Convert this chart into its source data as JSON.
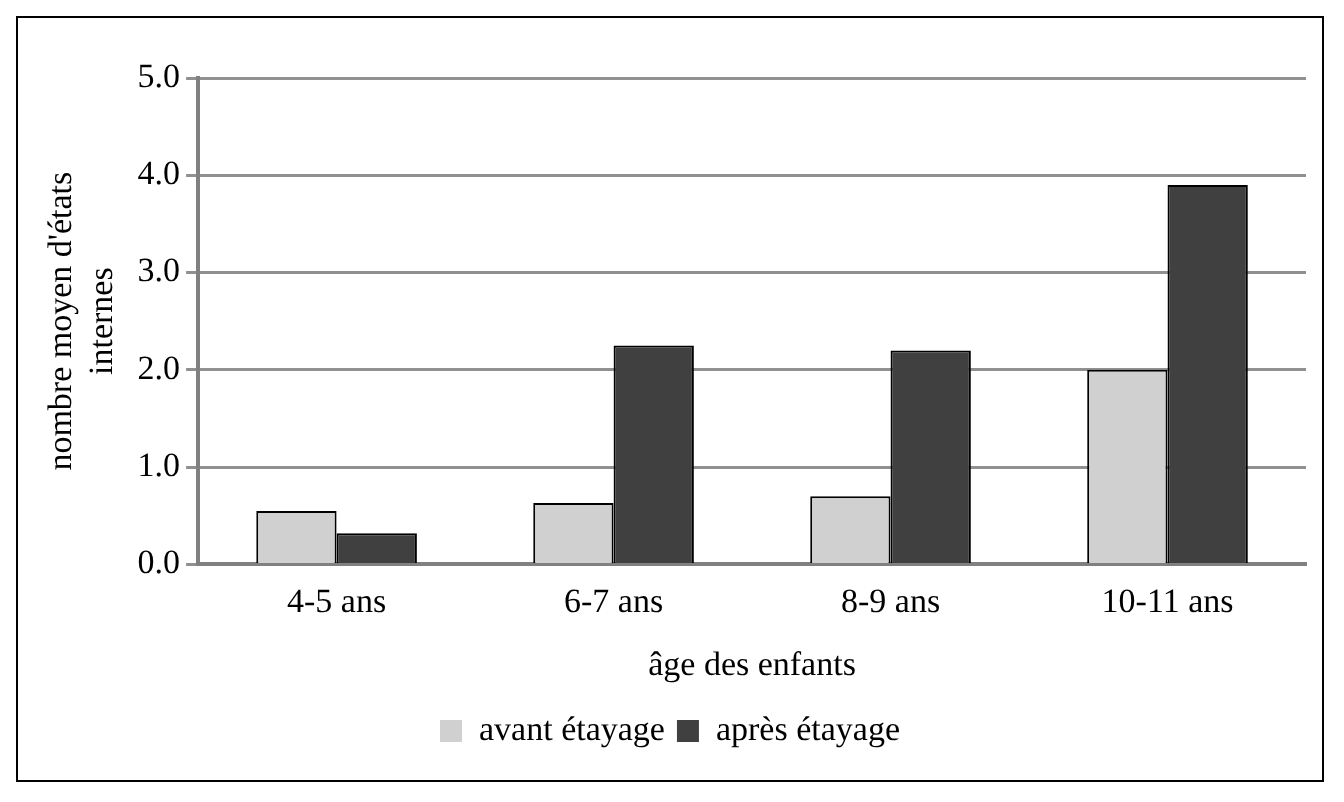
{
  "chart_data": {
    "type": "bar",
    "xlabel": "âge des enfants",
    "ylabel": "nombre moyen d'états internes",
    "categories": [
      "4-5 ans",
      "6-7 ans",
      "8-9 ans",
      "10-11 ans"
    ],
    "series": [
      {
        "name": "avant étayage",
        "color": "#d0d0d0",
        "values": [
          0.55,
          0.63,
          0.7,
          2.0
        ]
      },
      {
        "name": "après étayage",
        "color": "#404040",
        "values": [
          0.32,
          2.25,
          2.2,
          3.9
        ]
      }
    ],
    "ylim": [
      0,
      5
    ],
    "yticks": [
      {
        "value": 0,
        "label": "0.0"
      },
      {
        "value": 1,
        "label": "1.0"
      },
      {
        "value": 2,
        "label": "2.0"
      },
      {
        "value": 3,
        "label": "3.0"
      },
      {
        "value": 4,
        "label": "4.0"
      },
      {
        "value": 5,
        "label": "5.0"
      }
    ],
    "grid": "y",
    "legend": "bottom"
  }
}
